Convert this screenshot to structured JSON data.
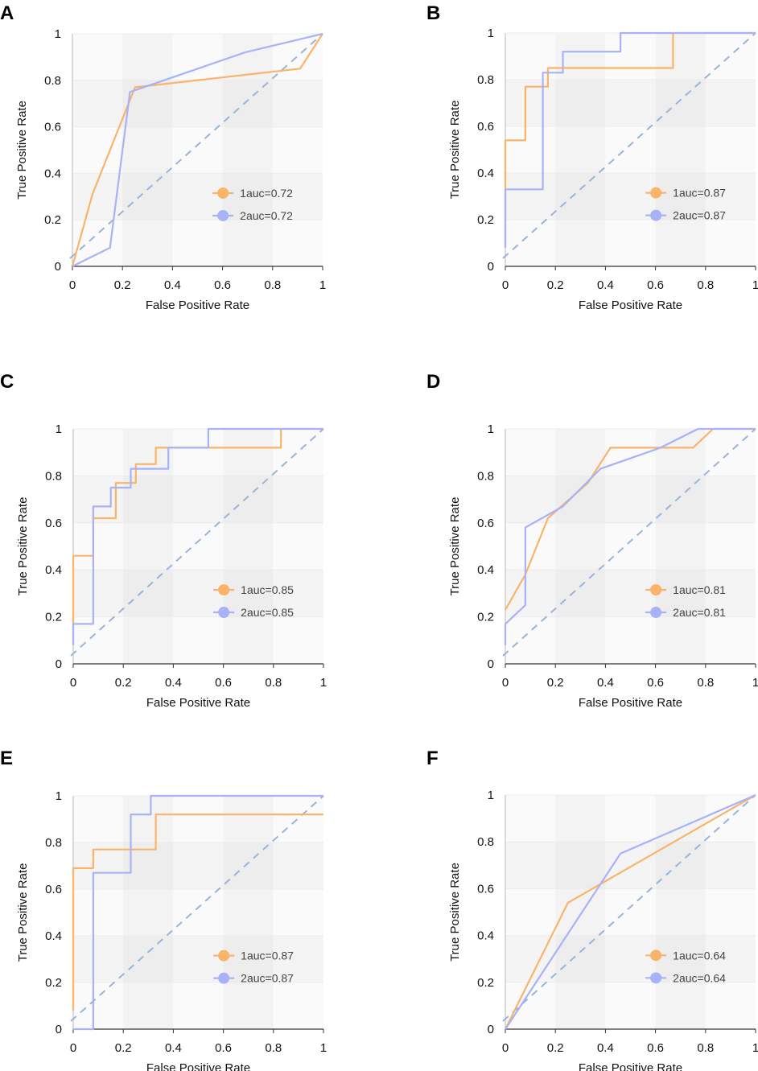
{
  "colors": {
    "series1": "#f9b46a",
    "series2": "#a7b2f7",
    "diagonal": "#9ab3d9"
  },
  "chart_data": [
    {
      "panel": "A",
      "type": "line",
      "xlabel": "False Positive Rate",
      "ylabel": "True Positive Rate",
      "xlim": [
        0,
        1
      ],
      "ylim": [
        0,
        1
      ],
      "xticks": [
        "0",
        "0.2",
        "0.4",
        "0.6",
        "0.8",
        "1"
      ],
      "yticks": [
        "0",
        "0.2",
        "0.4",
        "0.6",
        "0.8",
        "1"
      ],
      "series": [
        {
          "name": "1auc=0.72",
          "x": [
            0,
            0.08,
            0.25,
            0.91,
            1
          ],
          "y": [
            0,
            0.31,
            0.77,
            0.85,
            1
          ]
        },
        {
          "name": "2auc=0.72",
          "x": [
            0,
            0.15,
            0.23,
            0.69,
            1
          ],
          "y": [
            0,
            0.08,
            0.75,
            0.92,
            1
          ]
        }
      ]
    },
    {
      "panel": "B",
      "type": "line",
      "xlabel": "False Positive Rate",
      "ylabel": "True Positive Rate",
      "xlim": [
        0,
        1
      ],
      "ylim": [
        0,
        1
      ],
      "xticks": [
        "0",
        "0.2",
        "0.4",
        "0.6",
        "0.8",
        "1"
      ],
      "yticks": [
        "0",
        "0.2",
        "0.4",
        "0.6",
        "0.8",
        "1"
      ],
      "series": [
        {
          "name": "1auc=0.87",
          "x": [
            0,
            0,
            0.08,
            0.08,
            0.17,
            0.17,
            0.67,
            0.67,
            1
          ],
          "y": [
            0.08,
            0.54,
            0.54,
            0.77,
            0.77,
            0.85,
            0.85,
            1,
            1
          ]
        },
        {
          "name": "2auc=0.87",
          "x": [
            0,
            0,
            0.15,
            0.15,
            0.23,
            0.23,
            0.46,
            0.46,
            1
          ],
          "y": [
            0.08,
            0.33,
            0.33,
            0.83,
            0.83,
            0.92,
            0.92,
            1,
            1
          ]
        }
      ]
    },
    {
      "panel": "C",
      "type": "line",
      "xlabel": "False Positive Rate",
      "ylabel": "True Positive Rate",
      "xlim": [
        0,
        1
      ],
      "ylim": [
        0,
        1
      ],
      "xticks": [
        "0",
        "0.2",
        "0.4",
        "0.6",
        "0.8",
        "1"
      ],
      "yticks": [
        "0",
        "0.2",
        "0.4",
        "0.6",
        "0.8",
        "1"
      ],
      "series": [
        {
          "name": "1auc=0.85",
          "x": [
            0,
            0,
            0.08,
            0.08,
            0.17,
            0.17,
            0.25,
            0.25,
            0.33,
            0.33,
            0.83,
            0.83,
            1
          ],
          "y": [
            0.08,
            0.46,
            0.46,
            0.62,
            0.62,
            0.77,
            0.77,
            0.85,
            0.85,
            0.92,
            0.92,
            1,
            1
          ]
        },
        {
          "name": "2auc=0.85",
          "x": [
            0,
            0,
            0.08,
            0.08,
            0.15,
            0.15,
            0.23,
            0.23,
            0.38,
            0.38,
            0.54,
            0.54,
            1
          ],
          "y": [
            0.08,
            0.17,
            0.17,
            0.67,
            0.67,
            0.75,
            0.75,
            0.83,
            0.83,
            0.92,
            0.92,
            1,
            1
          ]
        }
      ]
    },
    {
      "panel": "D",
      "type": "line",
      "xlabel": "False Positive Rate",
      "ylabel": "True Positive Rate",
      "xlim": [
        0,
        1
      ],
      "ylim": [
        0,
        1
      ],
      "xticks": [
        "0",
        "0.2",
        "0.4",
        "0.6",
        "0.8",
        "1"
      ],
      "yticks": [
        "0",
        "0.2",
        "0.4",
        "0.6",
        "0.8",
        "1"
      ],
      "series": [
        {
          "name": "1auc=0.81",
          "x": [
            0,
            0.08,
            0.17,
            0.33,
            0.42,
            0.75,
            0.83,
            1
          ],
          "y": [
            0.23,
            0.38,
            0.62,
            0.77,
            0.92,
            0.92,
            1,
            1
          ]
        },
        {
          "name": "2auc=0.81",
          "x": [
            0,
            0,
            0.08,
            0.08,
            0.23,
            0.38,
            0.62,
            0.77,
            1
          ],
          "y": [
            0.08,
            0.17,
            0.25,
            0.58,
            0.67,
            0.83,
            0.92,
            1,
            1
          ]
        }
      ]
    },
    {
      "panel": "E",
      "type": "line",
      "xlabel": "False Positive Rate",
      "ylabel": "True Positive Rate",
      "xlim": [
        0,
        1
      ],
      "ylim": [
        0,
        1
      ],
      "xticks": [
        "0",
        "0.2",
        "0.4",
        "0.6",
        "0.8",
        "1"
      ],
      "yticks": [
        "0",
        "0.2",
        "0.4",
        "0.6",
        "0.8",
        "1"
      ],
      "series": [
        {
          "name": "1auc=0.87",
          "x": [
            0,
            0,
            0.08,
            0.08,
            0.33,
            0.33,
            1
          ],
          "y": [
            0.08,
            0.69,
            0.69,
            0.77,
            0.77,
            0.92,
            0.92
          ]
        },
        {
          "name": "2auc=0.87",
          "x": [
            0,
            0.08,
            0.08,
            0.23,
            0.23,
            0.31,
            0.31,
            1
          ],
          "y": [
            0,
            0,
            0.67,
            0.67,
            0.92,
            0.92,
            1,
            1
          ]
        }
      ]
    },
    {
      "panel": "F",
      "type": "line",
      "xlabel": "False Positive Rate",
      "ylabel": "True Positive Rate",
      "xlim": [
        0,
        1
      ],
      "ylim": [
        0,
        1
      ],
      "xticks": [
        "0",
        "0.2",
        "0.4",
        "0.6",
        "0.8",
        "1"
      ],
      "yticks": [
        "0",
        "0.2",
        "0.4",
        "0.6",
        "0.8",
        "1"
      ],
      "series": [
        {
          "name": "1auc=0.64",
          "x": [
            0,
            0.25,
            1
          ],
          "y": [
            0,
            0.54,
            1
          ]
        },
        {
          "name": "2auc=0.64",
          "x": [
            0,
            0.46,
            1
          ],
          "y": [
            0,
            0.75,
            1
          ]
        }
      ]
    }
  ]
}
